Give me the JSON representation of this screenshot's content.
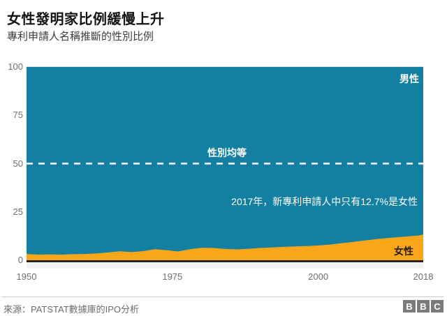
{
  "header": {
    "title": "女性發明家比例緩慢上升",
    "subtitle": "專利申請人名稱推斷的性別比例"
  },
  "chart_data": {
    "type": "area",
    "stacked_to_100_percent": true,
    "title": "女性發明家比例緩慢上升",
    "subtitle": "專利申請人名稱推斷的性別比例",
    "xlabel": "",
    "ylabel": "",
    "xlim": [
      1950,
      2018
    ],
    "ylim": [
      0,
      100
    ],
    "x_ticks": [
      1950,
      1975,
      2000,
      2018
    ],
    "y_ticks": [
      100,
      75,
      50,
      25,
      0
    ],
    "grid": "off",
    "x": [
      1950,
      1952,
      1954,
      1956,
      1958,
      1960,
      1962,
      1964,
      1966,
      1968,
      1970,
      1972,
      1974,
      1976,
      1978,
      1980,
      1982,
      1984,
      1986,
      1988,
      1990,
      1992,
      1994,
      1996,
      1998,
      2000,
      2002,
      2004,
      2006,
      2008,
      2010,
      2012,
      2014,
      2016,
      2017,
      2018
    ],
    "series": [
      {
        "name": "女性",
        "color": "#FAA61A",
        "values": [
          3.2,
          2.9,
          3.0,
          2.9,
          3.1,
          3.2,
          3.5,
          4.0,
          4.6,
          4.2,
          4.7,
          5.7,
          5.2,
          4.5,
          5.7,
          6.4,
          6.3,
          5.8,
          5.6,
          5.9,
          6.3,
          6.6,
          6.9,
          7.1,
          7.3,
          7.6,
          8.1,
          8.8,
          9.5,
          10.2,
          10.9,
          11.5,
          12.0,
          12.5,
          12.7,
          13.2
        ]
      },
      {
        "name": "男性",
        "color": "#1380A1",
        "values": [
          96.8,
          97.1,
          97.0,
          97.1,
          96.9,
          96.8,
          96.5,
          96.0,
          95.4,
          95.8,
          95.3,
          94.3,
          94.8,
          95.5,
          94.3,
          93.6,
          93.7,
          94.2,
          94.4,
          94.1,
          93.7,
          93.4,
          93.1,
          92.9,
          92.7,
          92.4,
          91.9,
          91.2,
          90.5,
          89.8,
          89.1,
          88.5,
          88.0,
          87.5,
          87.3,
          86.8
        ]
      }
    ],
    "reference_line": {
      "value": 50,
      "label": "性別均等",
      "style": "dashed",
      "color": "#ffffff"
    },
    "annotation": "2017年，新專利申請人中只有12.7%是女性",
    "labels": {
      "male": "男性",
      "female": "女性"
    },
    "legend_position": "in-plot"
  },
  "footer": {
    "source": "來源：PATSTAT數據庫的IPO分析",
    "logo_letters": [
      "B",
      "B",
      "C"
    ]
  }
}
